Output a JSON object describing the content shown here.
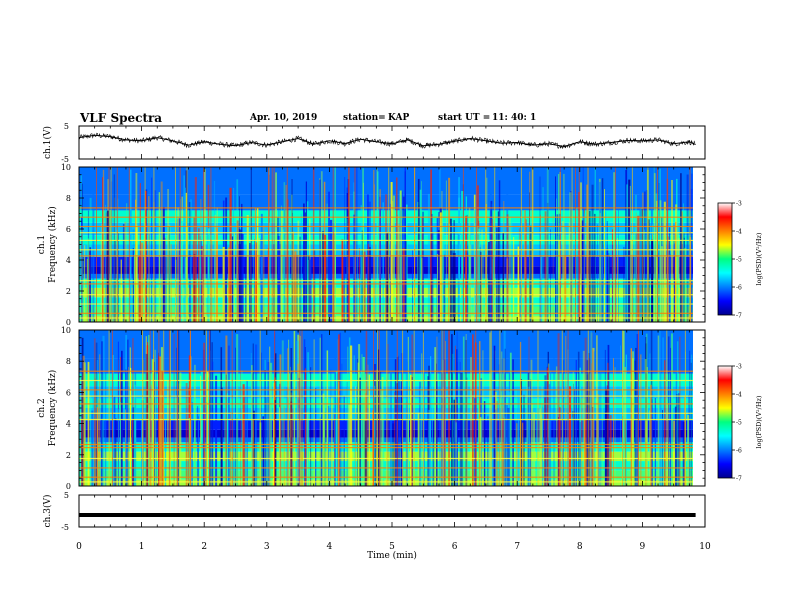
{
  "header": {
    "title": "VLF Spectra",
    "date": "Apr. 10, 2019",
    "station_label": "station=",
    "station": "KAP",
    "start_label": "start UT =",
    "start_value": "11: 40: 1"
  },
  "chart_data": [
    {
      "type": "line",
      "ylabel": "ch.1(V)",
      "ylim": [
        -5,
        5
      ],
      "yticks": [
        "5",
        "-5"
      ],
      "xlim": [
        0,
        10
      ],
      "description_series": "waveform",
      "x": [
        0.0,
        0.25,
        0.5,
        0.75,
        1.0,
        1.25,
        1.5,
        1.75,
        2.0,
        2.25,
        2.5,
        2.75,
        3.0,
        3.25,
        3.5,
        3.75,
        4.0,
        4.25,
        4.5,
        4.75,
        5.0,
        5.25,
        5.5,
        5.75,
        6.0,
        6.25,
        6.5,
        6.75,
        7.0,
        7.25,
        7.5,
        7.75,
        8.0,
        8.25,
        8.5,
        8.75,
        9.0,
        9.25,
        9.5,
        9.75,
        9.85
      ],
      "y": [
        1.5,
        2.2,
        1.8,
        0.8,
        0.5,
        1.5,
        0.5,
        -0.8,
        0.2,
        -0.5,
        -1.0,
        0.0,
        -0.8,
        0.2,
        1.2,
        -0.5,
        0.5,
        -0.3,
        1.0,
        0.2,
        -0.4,
        0.8,
        -1.0,
        -0.5,
        0.4,
        1.2,
        0.5,
        -0.2,
        0.0,
        -0.8,
        -0.4,
        -1.2,
        0.2,
        -0.5,
        0.0,
        0.6,
        0.5,
        0.8,
        -0.4,
        0.2,
        -0.6
      ]
    },
    {
      "type": "heatmap",
      "ylabel": "ch.1",
      "ylabel2": "Frequency (kHz)",
      "ylim": [
        0,
        10
      ],
      "yticks": [
        "0",
        "2",
        "4",
        "6",
        "8",
        "10"
      ],
      "xlim": [
        0,
        10
      ],
      "colorbar": {
        "label": "log(PSD)(V²/Hz)",
        "ticks": [
          "-3",
          "-4",
          "-5",
          "-6",
          "-7"
        ],
        "range": [
          -7,
          -3
        ]
      }
    },
    {
      "type": "heatmap",
      "ylabel": "ch.2",
      "ylabel2": "Frequency (kHz)",
      "ylim": [
        0,
        10
      ],
      "yticks": [
        "0",
        "2",
        "4",
        "6",
        "8",
        "10"
      ],
      "xlim": [
        0,
        10
      ],
      "colorbar": {
        "label": "log(PSD)(V²/Hz)",
        "ticks": [
          "-3",
          "-4",
          "-5",
          "-6",
          "-7"
        ],
        "range": [
          -7,
          -3
        ]
      }
    },
    {
      "type": "line",
      "ylabel": "ch.3(V)",
      "ylim": [
        -5,
        5
      ],
      "yticks": [
        "5",
        "-5"
      ],
      "xlim": [
        0,
        10
      ],
      "x": [
        0,
        9.85
      ],
      "y": [
        0,
        0
      ]
    }
  ],
  "xaxis": {
    "label": "Time (min)",
    "ticks": [
      "0",
      "1",
      "2",
      "3",
      "4",
      "5",
      "6",
      "7",
      "8",
      "9",
      "10"
    ]
  }
}
